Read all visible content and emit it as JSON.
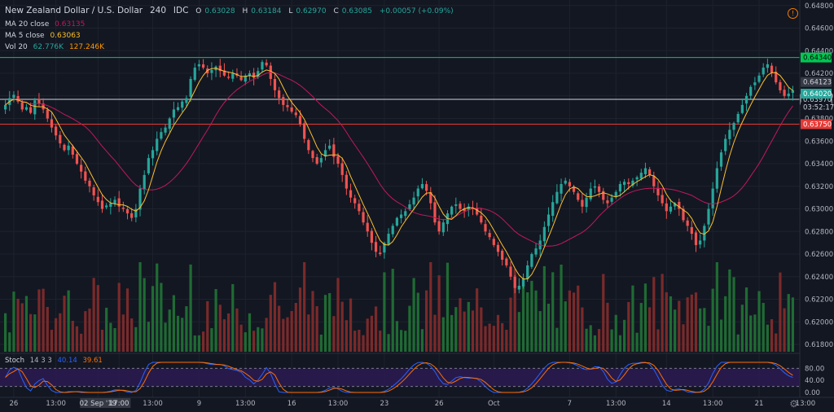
{
  "header": {
    "title": "New Zealand Dollar / U.S. Dollar",
    "interval": "240",
    "source": "IDC",
    "ohlc": {
      "o_label": "O",
      "o": "0.63028",
      "h_label": "H",
      "h": "0.63184",
      "l_label": "L",
      "l": "0.62970",
      "c_label": "C",
      "c": "0.63085",
      "change": "+0.00057 (+0.09%)"
    }
  },
  "indicators": {
    "ma20": {
      "label": "MA 20 close",
      "value": "0.63135",
      "color": "#c2185b"
    },
    "ma5": {
      "label": "MA 5 close",
      "value": "0.63063",
      "color": "#fbc02d"
    },
    "vol": {
      "label": "Vol 20",
      "v1": "62.776K",
      "v2": "127.246K"
    }
  },
  "stoch": {
    "label": "Stoch",
    "params": "14 3 3",
    "k": "40.14",
    "d": "39.61",
    "k_color": "#2962ff",
    "d_color": "#ff6d00"
  },
  "chart_data": {
    "type": "candlestick",
    "y_ticks": [
      "0.64800",
      "0.64600",
      "0.64400",
      "0.64200",
      "0.64000",
      "0.63800",
      "0.63600",
      "0.63400",
      "0.63200",
      "0.63000",
      "0.62800",
      "0.62600",
      "0.62400",
      "0.62200",
      "0.62000",
      "0.61800"
    ],
    "ylim": [
      0.6175,
      0.6482
    ],
    "x_ticks": [
      {
        "label": "26",
        "i": 2
      },
      {
        "label": "13:00",
        "i": 12
      },
      {
        "label": "02 Sep '19",
        "i": 22
      },
      {
        "label": "17:00",
        "i": 27
      },
      {
        "label": "13:00",
        "i": 35
      },
      {
        "label": "9",
        "i": 46
      },
      {
        "label": "13:00",
        "i": 57
      },
      {
        "label": "16",
        "i": 68
      },
      {
        "label": "13:00",
        "i": 79
      },
      {
        "label": "23",
        "i": 90
      },
      {
        "label": "26",
        "i": 103
      },
      {
        "label": "Oct",
        "i": 116
      },
      {
        "label": "7",
        "i": 134
      },
      {
        "label": "13:00",
        "i": 145
      },
      {
        "label": "14",
        "i": 157
      },
      {
        "label": "13:00",
        "i": 168
      },
      {
        "label": "21",
        "i": 179
      },
      {
        "label": "13:00",
        "i": 190
      }
    ],
    "closes": [
      0.6392,
      0.6398,
      0.6401,
      0.6395,
      0.6388,
      0.639,
      0.6385,
      0.6396,
      0.6393,
      0.6388,
      0.638,
      0.6372,
      0.6365,
      0.6358,
      0.6352,
      0.6356,
      0.6348,
      0.634,
      0.6333,
      0.6325,
      0.632,
      0.6312,
      0.6306,
      0.63,
      0.6303,
      0.6305,
      0.6308,
      0.6302,
      0.63,
      0.6296,
      0.6292,
      0.63,
      0.6318,
      0.633,
      0.6345,
      0.6352,
      0.6362,
      0.6368,
      0.6372,
      0.638,
      0.6388,
      0.639,
      0.6395,
      0.6398,
      0.6415,
      0.6425,
      0.6428,
      0.6425,
      0.642,
      0.6423,
      0.6426,
      0.6422,
      0.6418,
      0.6416,
      0.642,
      0.6418,
      0.6414,
      0.6418,
      0.642,
      0.6416,
      0.6422,
      0.643,
      0.6427,
      0.6415,
      0.6405,
      0.6398,
      0.6392,
      0.639,
      0.6386,
      0.6383,
      0.6375,
      0.6362,
      0.6352,
      0.6345,
      0.634,
      0.6345,
      0.6352,
      0.6356,
      0.6346,
      0.634,
      0.633,
      0.6318,
      0.631,
      0.6305,
      0.6298,
      0.6288,
      0.628,
      0.627,
      0.6262,
      0.626,
      0.627,
      0.6278,
      0.6285,
      0.6292,
      0.6295,
      0.6298,
      0.6304,
      0.631,
      0.6318,
      0.6322,
      0.6316,
      0.6305,
      0.6288,
      0.628,
      0.6288,
      0.6296,
      0.6302,
      0.6304,
      0.63,
      0.6298,
      0.6302,
      0.63,
      0.6295,
      0.6288,
      0.628,
      0.6275,
      0.6268,
      0.6262,
      0.6255,
      0.625,
      0.624,
      0.623,
      0.6232,
      0.6238,
      0.625,
      0.626,
      0.6265,
      0.6272,
      0.6284,
      0.6295,
      0.6306,
      0.6315,
      0.6322,
      0.6325,
      0.632,
      0.6315,
      0.6308,
      0.6302,
      0.631,
      0.6318,
      0.632,
      0.6315,
      0.6308,
      0.6305,
      0.631,
      0.6315,
      0.6322,
      0.6324,
      0.6322,
      0.6325,
      0.6328,
      0.6332,
      0.6336,
      0.633,
      0.632,
      0.6312,
      0.6305,
      0.6298,
      0.6302,
      0.6305,
      0.63,
      0.629,
      0.6285,
      0.6278,
      0.6268,
      0.6272,
      0.6285,
      0.63,
      0.6318,
      0.6336,
      0.635,
      0.6362,
      0.637,
      0.6376,
      0.6384,
      0.6392,
      0.64,
      0.6408,
      0.6412,
      0.6418,
      0.6425,
      0.6428,
      0.642,
      0.6412,
      0.6405,
      0.64,
      0.6402,
      0.6405
    ],
    "ma20_color": "#c2185b",
    "ma5_color": "#fbc02d",
    "bull_color": "#26a69a",
    "bear_color": "#ef5350",
    "vol_bull_color": "#1f6b33",
    "vol_bear_color": "#7a2a2a",
    "h_lines": [
      {
        "price": 0.6434,
        "color": "#00c853",
        "label": "0.64340"
      },
      {
        "price": 0.6375,
        "color": "#e53935",
        "label": "0.63750"
      },
      {
        "price": 0.6397,
        "color": "#d1d4dc",
        "label": "0.63970"
      }
    ],
    "price_labels": [
      {
        "price": 0.64123,
        "text": "0.64123",
        "bg": "#363a45",
        "fg": "#d1d4dc"
      },
      {
        "price": 0.6402,
        "text": "0.64020",
        "bg": "#26a69a",
        "fg": "#ffffff"
      },
      {
        "price": 0.639,
        "text": "03:52:17",
        "bg": "#131722",
        "fg": "#d1d4dc"
      }
    ],
    "stoch_ticks": [
      "80.00",
      "40.00",
      "0.00"
    ]
  }
}
